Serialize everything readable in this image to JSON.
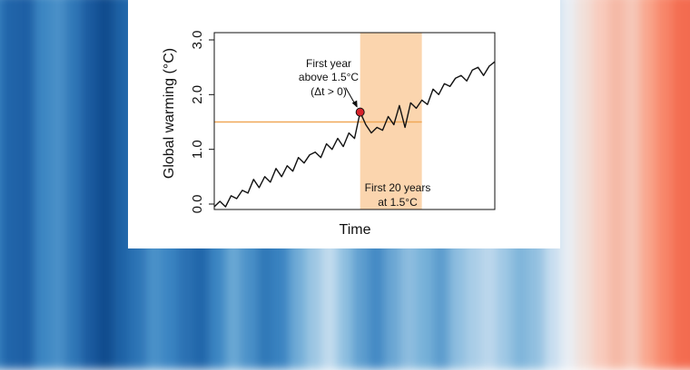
{
  "background_stripe_colors": [
    "#3a83c1",
    "#1f63a8",
    "#1c5ea4",
    "#3c86c2",
    "#4a90c8",
    "#2f77b7",
    "#1a5a9f",
    "#0f4b8d",
    "#1d62a6",
    "#2c74b5",
    "#4a91c9",
    "#3a84c2",
    "#2a70b2",
    "#1f65a9",
    "#3b85c2",
    "#6aa8d4",
    "#4a90c8",
    "#2f78b7",
    "#3a83c1",
    "#6fabd6",
    "#9cc6e3",
    "#c3dcee",
    "#8ebfe0",
    "#5f9fcf",
    "#4389c4",
    "#6aa6d3",
    "#8ebddf",
    "#76b1d8",
    "#5b9bcd",
    "#8dbddf",
    "#a9cde7",
    "#bcd7ec",
    "#9ec7e4",
    "#7fb5da",
    "#92c0e0",
    "#c7ddef",
    "#e9eef4",
    "#f2dfd8",
    "#f8cbbd",
    "#f5b8a5",
    "#f6c7b8",
    "#f9a58c",
    "#f7866a",
    "#f46d51",
    "#f26a4f"
  ],
  "chart_data": {
    "type": "line",
    "ylabel": "Global warming (°C)",
    "xlabel": "Time",
    "ylim": [
      0,
      3.0
    ],
    "yticks": [
      "0.0",
      "1.0",
      "2.0",
      "3.0"
    ],
    "x_range": [
      0,
      50
    ],
    "grid": false,
    "series": [
      {
        "color": "#111111",
        "x": [
          0,
          1,
          2,
          3,
          4,
          5,
          6,
          7,
          8,
          9,
          10,
          11,
          12,
          13,
          14,
          15,
          16,
          17,
          18,
          19,
          20,
          21,
          22,
          23,
          24,
          25,
          26,
          27,
          28,
          29,
          30,
          31,
          32,
          33,
          34,
          35,
          36,
          37,
          38,
          39,
          40,
          41,
          42,
          43,
          44,
          45,
          46,
          47,
          48,
          49,
          50
        ],
        "y": [
          -0.05,
          0.05,
          -0.05,
          0.15,
          0.1,
          0.25,
          0.2,
          0.45,
          0.3,
          0.5,
          0.4,
          0.65,
          0.5,
          0.7,
          0.6,
          0.85,
          0.75,
          0.9,
          0.95,
          0.85,
          1.1,
          1.0,
          1.2,
          1.05,
          1.3,
          1.2,
          1.68,
          1.45,
          1.3,
          1.4,
          1.35,
          1.6,
          1.45,
          1.8,
          1.4,
          1.85,
          1.75,
          1.9,
          1.82,
          2.1,
          2.0,
          2.2,
          2.15,
          2.3,
          2.35,
          2.25,
          2.45,
          2.5,
          2.35,
          2.52,
          2.6
        ]
      }
    ],
    "threshold": {
      "y": 1.5,
      "color": "#f0a858"
    },
    "shaded_region": {
      "x_start": 26,
      "x_end": 37,
      "color": "#fbd5ae",
      "label_line1": "First 20 years",
      "label_line2": "at 1.5°C"
    },
    "marker": {
      "x": 26,
      "y": 1.68,
      "color": "#d8232a",
      "label_line1": "First year",
      "label_line2": "above 1.5°C",
      "label_line3": "(Δt > 0)"
    }
  }
}
